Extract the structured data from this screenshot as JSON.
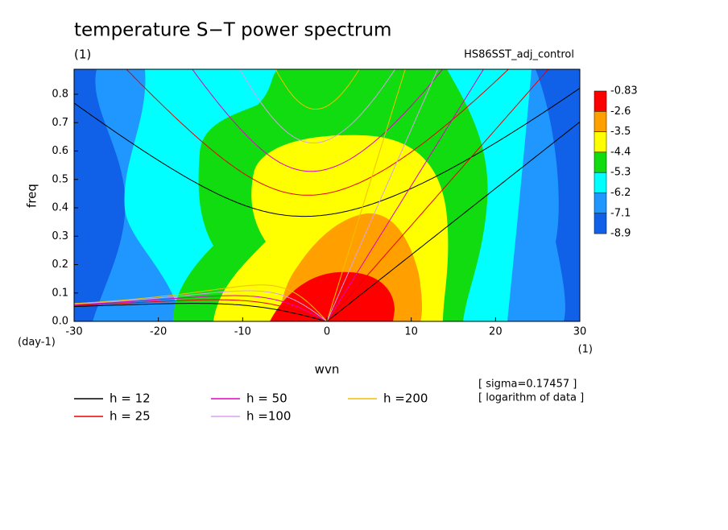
{
  "chart_data": {
    "type": "contour",
    "title": "temperature S−T power spectrum",
    "subtitle": "(1)",
    "label_right": "HS86SST_adj_control",
    "xlabel": "wvn",
    "ylabel": "freq",
    "x_unit": "(1)",
    "y_unit": "(day-1)",
    "xlim": [
      -30,
      30
    ],
    "ylim": [
      0,
      0.888
    ],
    "xticks": [
      -30,
      -20,
      -10,
      0,
      10,
      20,
      30
    ],
    "yticks": [
      {
        "value": 0,
        "label": "0.0"
      },
      0.1,
      0.2,
      0.3,
      0.4,
      0.5,
      0.6,
      0.7,
      0.8
    ],
    "levels": [
      -0.83,
      -2.6,
      -3.5,
      -4.4,
      -5.3,
      -6.2,
      -7.1,
      -8.9
    ],
    "level_colors": [
      "#ff0000",
      "#ffa000",
      "#ffff00",
      "#10dc10",
      "#00ffff",
      "#2096ff",
      "#1060e8"
    ],
    "series": [
      {
        "name": "h = 12",
        "h": 12,
        "color": "#000000"
      },
      {
        "name": "h = 25",
        "h": 25,
        "color": "#e80000"
      },
      {
        "name": "h = 50",
        "h": 50,
        "color": "#e000c0"
      },
      {
        "name": "h =100",
        "h": 100,
        "color": "#d8a0e8"
      },
      {
        "name": "h =200",
        "h": 200,
        "color": "#f0c000"
      }
    ],
    "notes": [
      "[ sigma=0.17457 ]",
      "[ logarithm of data ]"
    ]
  }
}
